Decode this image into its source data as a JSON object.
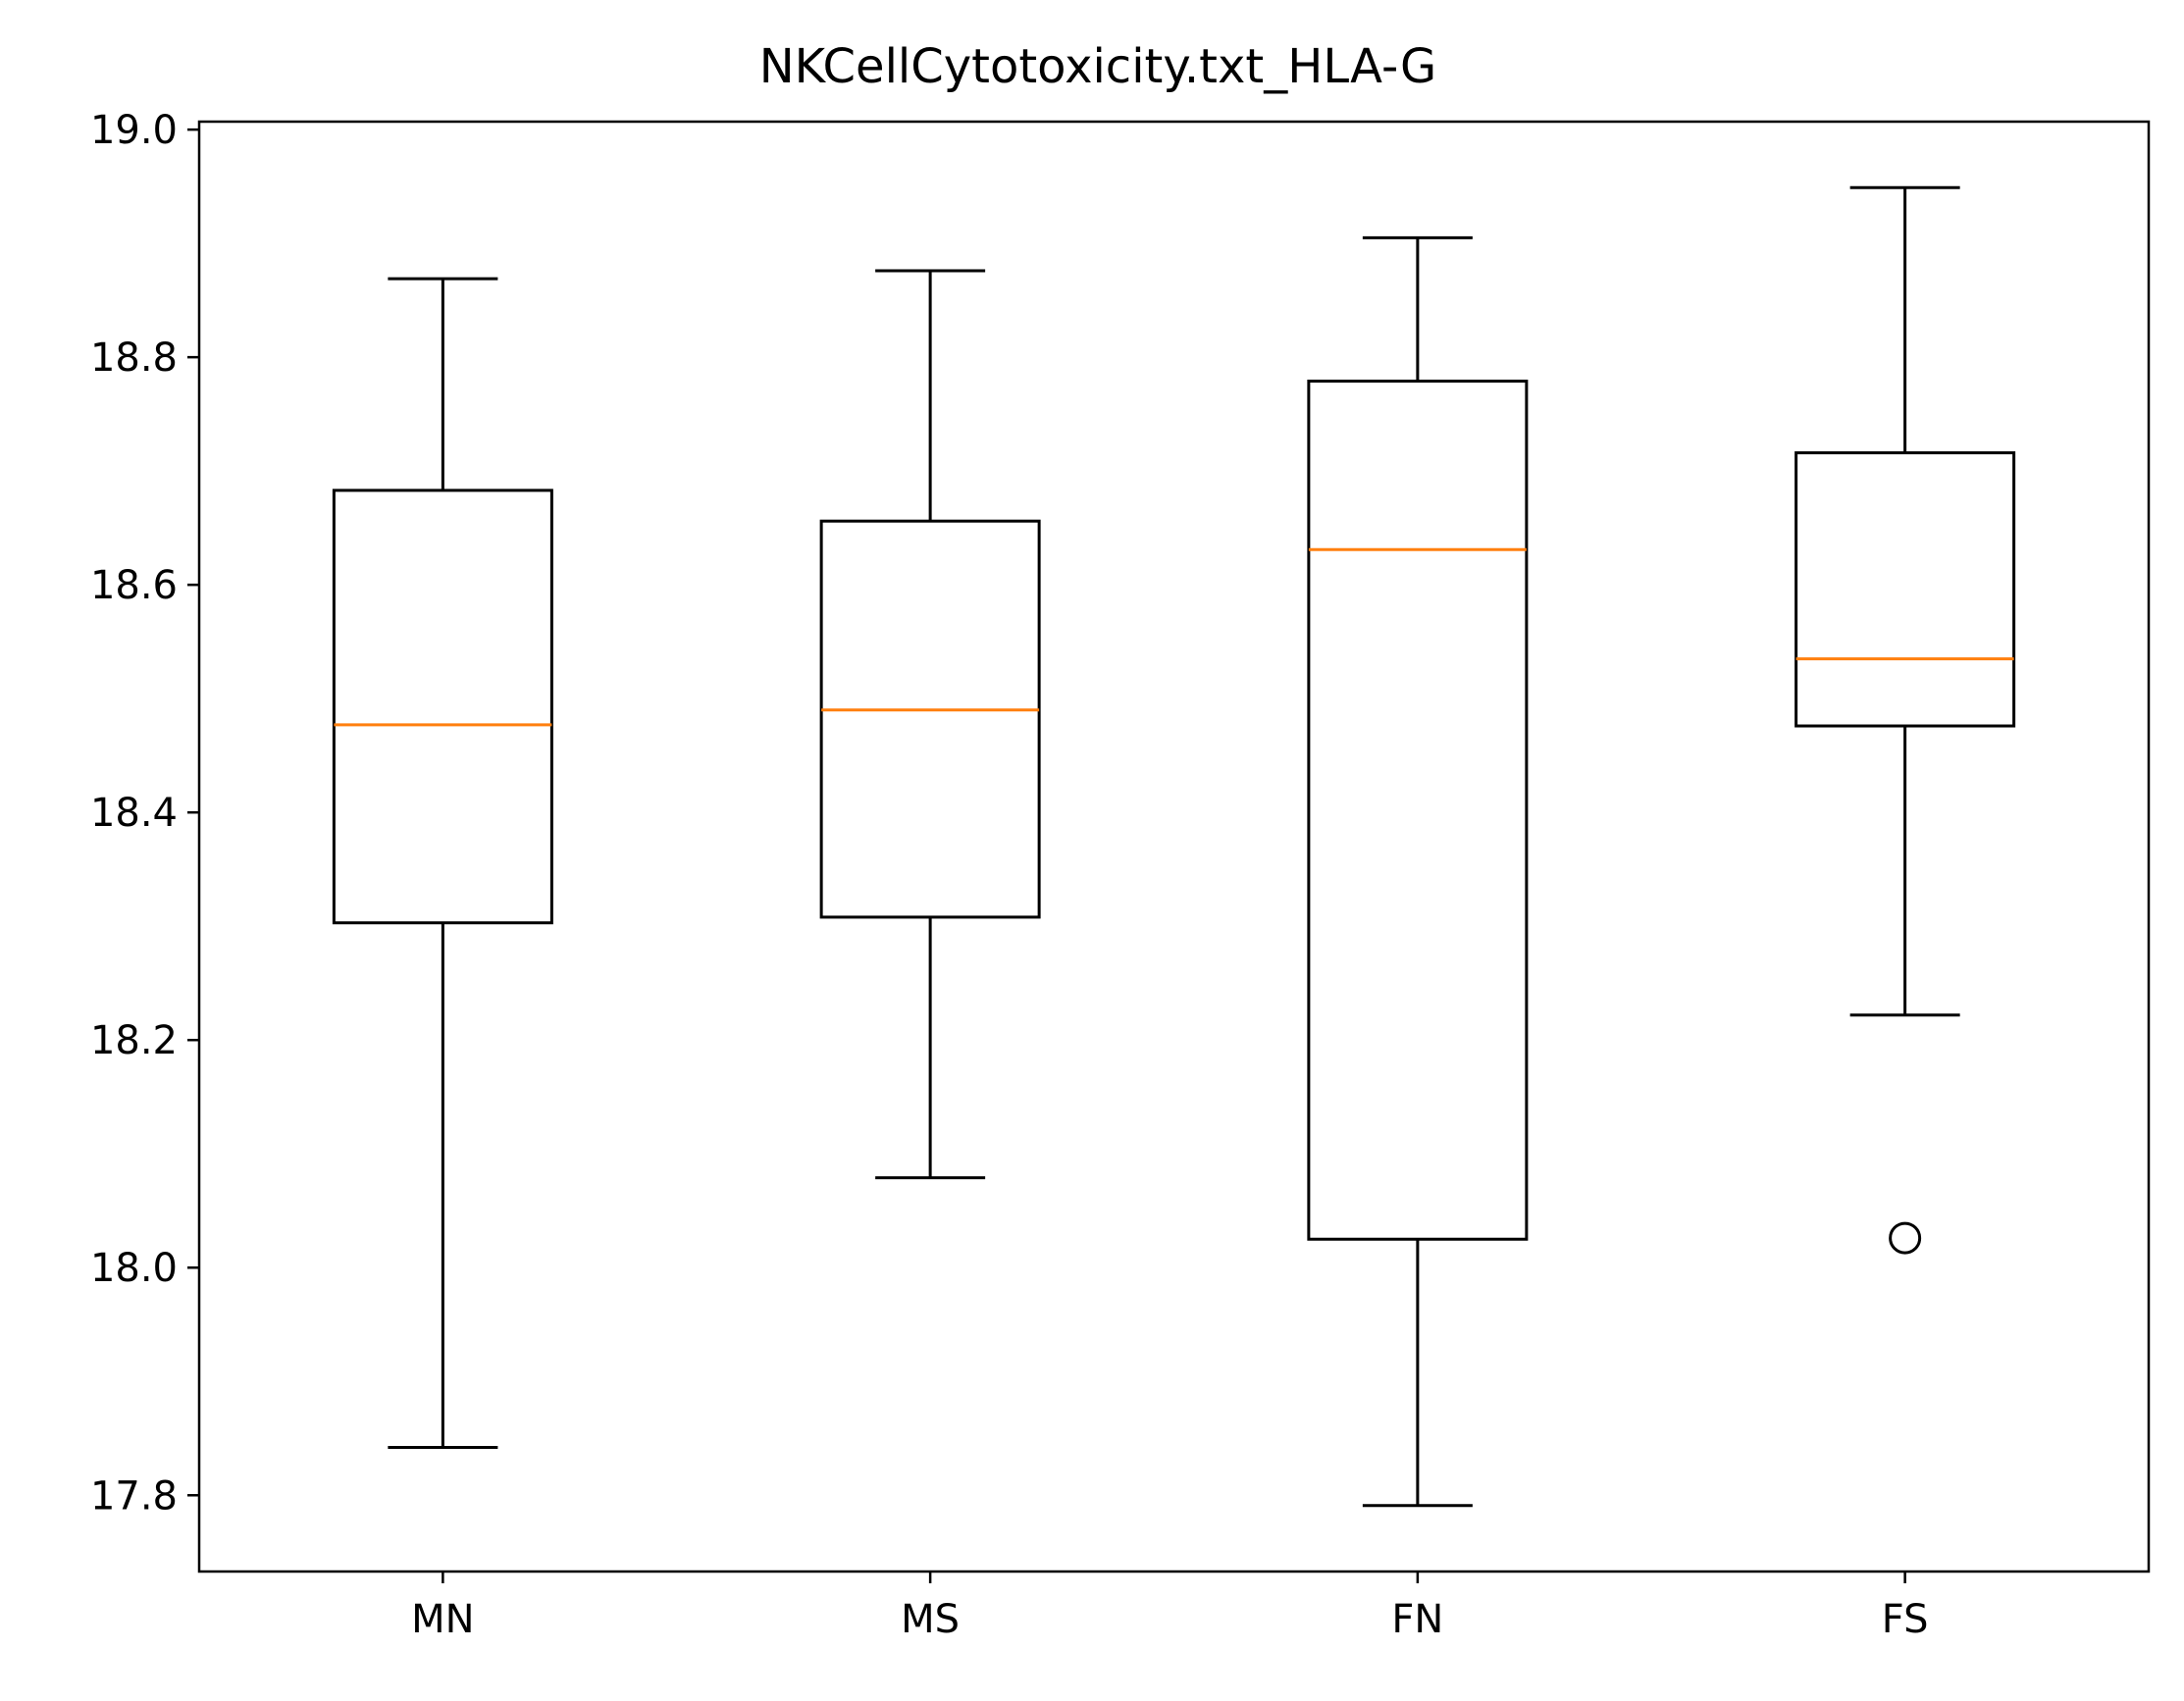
{
  "chart_data": {
    "type": "box",
    "title": "NKCellCytotoxicity.txt_HLA-G",
    "xlabel": "",
    "ylabel": "",
    "ylim": [
      17.733,
      19.007
    ],
    "yticks": [
      17.8,
      18.0,
      18.2,
      18.4,
      18.6,
      18.8,
      19.0
    ],
    "ytick_labels": [
      "17.8",
      "18.0",
      "18.2",
      "18.4",
      "18.6",
      "18.8",
      "19.0"
    ],
    "categories": [
      "MN",
      "MS",
      "FN",
      "FS"
    ],
    "boxes": [
      {
        "category": "MN",
        "whisker_low": 17.842,
        "q1": 18.303,
        "median": 18.477,
        "q3": 18.683,
        "whisker_high": 18.869,
        "outliers": []
      },
      {
        "category": "MS",
        "whisker_low": 18.079,
        "q1": 18.308,
        "median": 18.49,
        "q3": 18.656,
        "whisker_high": 18.876,
        "outliers": []
      },
      {
        "category": "FN",
        "whisker_low": 17.791,
        "q1": 18.025,
        "median": 18.631,
        "q3": 18.779,
        "whisker_high": 18.905,
        "outliers": []
      },
      {
        "category": "FS",
        "whisker_low": 18.222,
        "q1": 18.476,
        "median": 18.535,
        "q3": 18.716,
        "whisker_high": 18.949,
        "outliers": [
          18.026
        ]
      }
    ],
    "grid": false,
    "colors": {
      "box": "#000000",
      "median": "#ff7f0e",
      "outlier": "#000000"
    }
  }
}
